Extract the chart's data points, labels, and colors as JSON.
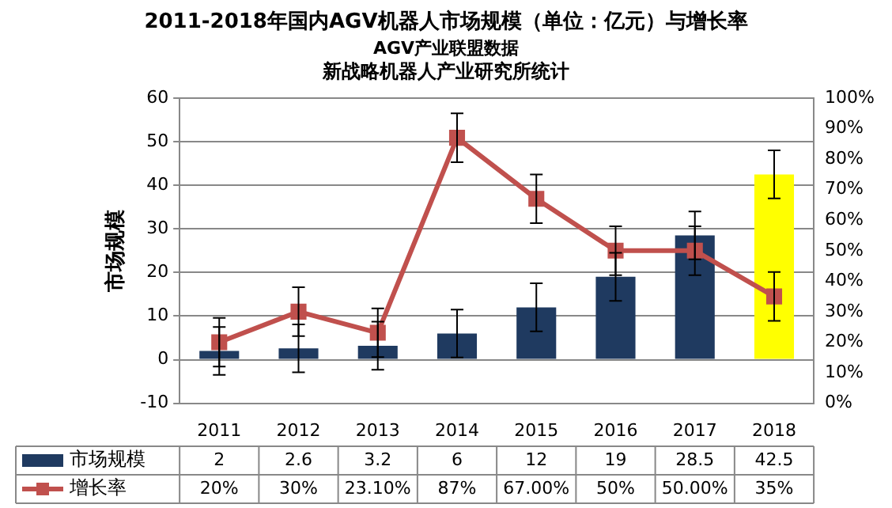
{
  "chart_data": {
    "type": "bar",
    "title": "2011-2018年国内AGV机器人市场规模（单位：亿元）与增长率",
    "subtitle": "AGV产业联盟数据",
    "annotations": [
      "新战略机器人产业研究所统计"
    ],
    "categories": [
      "2011",
      "2012",
      "2013",
      "2014",
      "2015",
      "2016",
      "2017",
      "2018"
    ],
    "ylabel": "市场规模",
    "ylim": [
      -10,
      60
    ],
    "yticks": [
      -10,
      0,
      10,
      20,
      30,
      40,
      50,
      60
    ],
    "y2lim": [
      0,
      100
    ],
    "y2ticks": [
      {
        "value": 0,
        "label": "0%"
      },
      {
        "value": 10,
        "label": "10%"
      },
      {
        "value": 20,
        "label": "20%"
      },
      {
        "value": 30,
        "label": "30%"
      },
      {
        "value": 40,
        "label": "40%"
      },
      {
        "value": 50,
        "label": "50%"
      },
      {
        "value": 60,
        "label": "60%"
      },
      {
        "value": 70,
        "label": "70%"
      },
      {
        "value": 80,
        "label": "80%"
      },
      {
        "value": 90,
        "label": "90%"
      },
      {
        "value": 100,
        "label": "100%"
      }
    ],
    "series": [
      {
        "name": "市场规模",
        "color": "#1f3a60",
        "colors": [
          "#1f3a60",
          "#1f3a60",
          "#1f3a60",
          "#1f3a60",
          "#1f3a60",
          "#1f3a60",
          "#1f3a60",
          "#ffff00"
        ],
        "values": [
          2,
          2.6,
          3.2,
          6,
          12,
          19,
          28.5,
          42.5
        ],
        "errors": [
          5.5,
          5.5,
          5.5,
          5.5,
          5.5,
          5.5,
          5.5,
          5.5
        ],
        "value_labels": [
          "2",
          "2.6",
          "3.2",
          "6",
          "12",
          "19",
          "28.5",
          "42.5"
        ]
      },
      {
        "name": "增长率",
        "type": "line",
        "axis": "y2",
        "color": "#c0504d",
        "marker": "square",
        "values": [
          20,
          30,
          23.1,
          87,
          67,
          50,
          50,
          35
        ],
        "errors": [
          8,
          8,
          8,
          8,
          8,
          8,
          8,
          8
        ],
        "value_labels": [
          "20%",
          "30%",
          "23.10%",
          "87%",
          "67.00%",
          "50%",
          "50.00%",
          "35%"
        ]
      }
    ],
    "grid": "y",
    "legend": "bottom"
  }
}
